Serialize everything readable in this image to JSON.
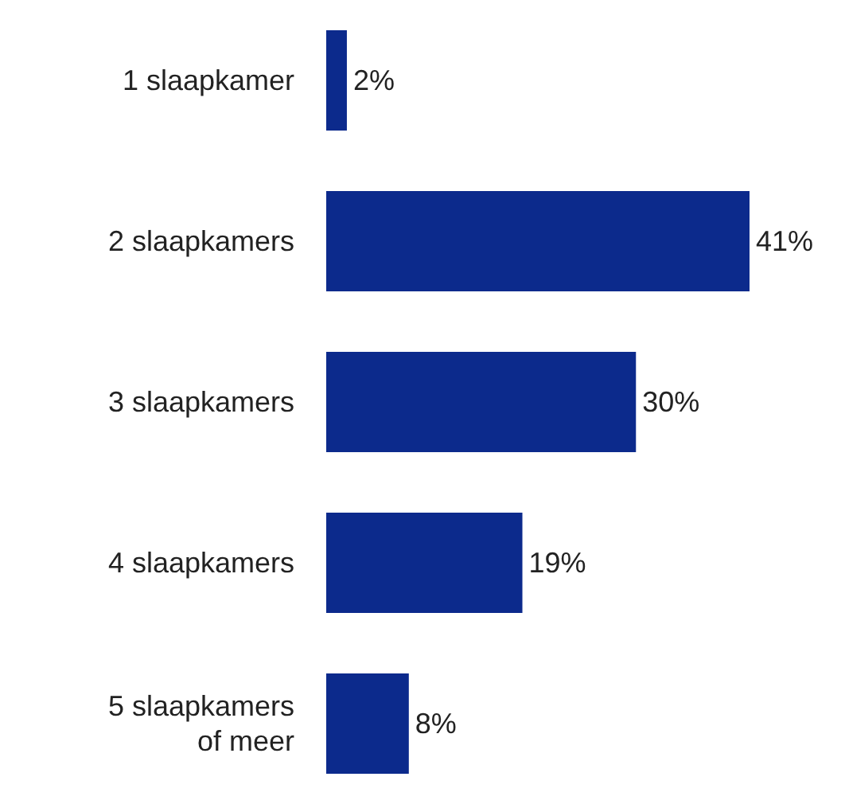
{
  "chart_data": {
    "type": "bar",
    "orientation": "horizontal",
    "categories": [
      "1 slaapkamer",
      "2 slaapkamers",
      "3 slaapkamers",
      "4 slaapkamers",
      "5 slaapkamers\nof meer"
    ],
    "values": [
      2,
      41,
      30,
      19,
      8
    ],
    "value_labels": [
      "2%",
      "41%",
      "30%",
      "19%",
      "8%"
    ],
    "color": "#0c2a8c"
  }
}
